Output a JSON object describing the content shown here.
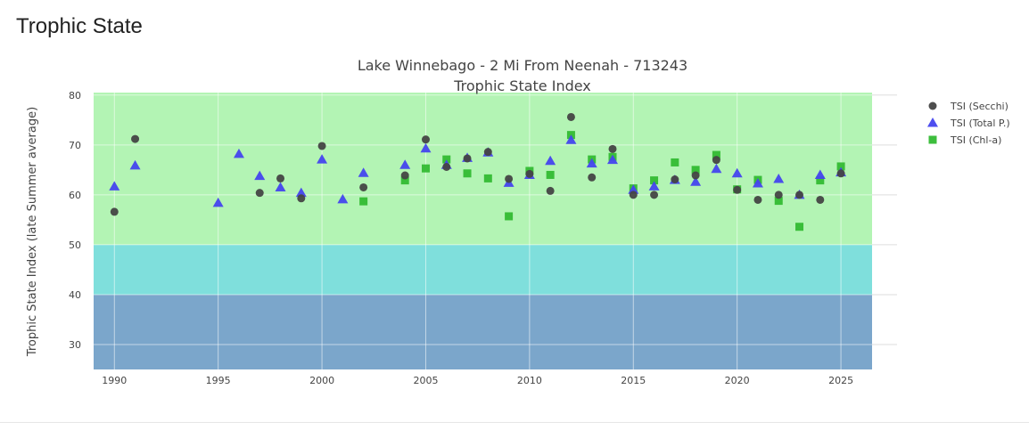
{
  "page": {
    "heading": "Trophic State"
  },
  "chart_data": {
    "type": "scatter",
    "title": "Lake Winnebago - 2 Mi From Neenah - 713243",
    "subtitle": "Trophic State Index",
    "xlabel": "",
    "ylabel": "Trophic State Index (late Summer average)",
    "xlim": [
      1989,
      2026.5
    ],
    "ylim": [
      25,
      80.5
    ],
    "x_ticks": [
      1990,
      1995,
      2000,
      2005,
      2010,
      2015,
      2020,
      2025
    ],
    "y_ticks": [
      30,
      40,
      50,
      60,
      70,
      80
    ],
    "grid": true,
    "legend_position": "right",
    "bands": [
      {
        "from": 25,
        "to": 40,
        "color": "#7ba6cb"
      },
      {
        "from": 40,
        "to": 50,
        "color": "#7fdfdc"
      },
      {
        "from": 50,
        "to": 80.5,
        "color": "#b3f4b4"
      }
    ],
    "series": [
      {
        "name": "TSI (Secchi)",
        "marker": "circle",
        "color": "#444444",
        "points": [
          [
            1990,
            56.6
          ],
          [
            1991,
            71.2
          ],
          [
            1997,
            60.4
          ],
          [
            1998,
            63.3
          ],
          [
            1999,
            59.3
          ],
          [
            2000,
            69.8
          ],
          [
            2002,
            61.5
          ],
          [
            2004,
            63.9
          ],
          [
            2005,
            71.1
          ],
          [
            2006,
            65.6
          ],
          [
            2007,
            67.3
          ],
          [
            2008,
            68.6
          ],
          [
            2009,
            63.2
          ],
          [
            2010,
            64.2
          ],
          [
            2011,
            60.8
          ],
          [
            2012,
            75.6
          ],
          [
            2013,
            63.5
          ],
          [
            2014,
            69.2
          ],
          [
            2015,
            60.0
          ],
          [
            2016,
            60.0
          ],
          [
            2017,
            63.1
          ],
          [
            2018,
            63.9
          ],
          [
            2019,
            67.0
          ],
          [
            2020,
            61.0
          ],
          [
            2021,
            59.0
          ],
          [
            2022,
            60.0
          ],
          [
            2023,
            60.0
          ],
          [
            2024,
            59.0
          ],
          [
            2025,
            64.3
          ]
        ]
      },
      {
        "name": "TSI (Total P.)",
        "marker": "triangle-up",
        "color": "#4545ee",
        "points": [
          [
            1990,
            61.7
          ],
          [
            1991,
            65.9
          ],
          [
            1995,
            58.4
          ],
          [
            1996,
            68.2
          ],
          [
            1997,
            63.8
          ],
          [
            1998,
            61.5
          ],
          [
            1999,
            60.4
          ],
          [
            2000,
            67.1
          ],
          [
            2001,
            59.1
          ],
          [
            2002,
            64.4
          ],
          [
            2004,
            66.0
          ],
          [
            2005,
            69.3
          ],
          [
            2006,
            66.0
          ],
          [
            2007,
            67.4
          ],
          [
            2008,
            68.5
          ],
          [
            2009,
            62.4
          ],
          [
            2010,
            64.0
          ],
          [
            2011,
            66.8
          ],
          [
            2012,
            71.0
          ],
          [
            2013,
            66.3
          ],
          [
            2014,
            67.0
          ],
          [
            2015,
            61.0
          ],
          [
            2016,
            61.7
          ],
          [
            2017,
            63.0
          ],
          [
            2018,
            62.6
          ],
          [
            2019,
            65.2
          ],
          [
            2020,
            64.3
          ],
          [
            2021,
            62.3
          ],
          [
            2022,
            63.2
          ],
          [
            2023,
            60.0
          ],
          [
            2024,
            64.0
          ],
          [
            2025,
            64.5
          ]
        ]
      },
      {
        "name": "TSI (Chl-a)",
        "marker": "square",
        "color": "#33bb33",
        "points": [
          [
            2002,
            58.7
          ],
          [
            2004,
            62.9
          ],
          [
            2005,
            65.3
          ],
          [
            2006,
            67.1
          ],
          [
            2007,
            64.3
          ],
          [
            2008,
            63.3
          ],
          [
            2009,
            55.7
          ],
          [
            2010,
            64.8
          ],
          [
            2011,
            64.0
          ],
          [
            2012,
            72.0
          ],
          [
            2013,
            67.1
          ],
          [
            2014,
            67.6
          ],
          [
            2015,
            61.3
          ],
          [
            2016,
            62.9
          ],
          [
            2017,
            66.5
          ],
          [
            2018,
            65.0
          ],
          [
            2019,
            68.0
          ],
          [
            2020,
            61.1
          ],
          [
            2021,
            63.0
          ],
          [
            2022,
            58.8
          ],
          [
            2023,
            53.6
          ],
          [
            2024,
            62.9
          ],
          [
            2025,
            65.7
          ]
        ]
      }
    ]
  }
}
